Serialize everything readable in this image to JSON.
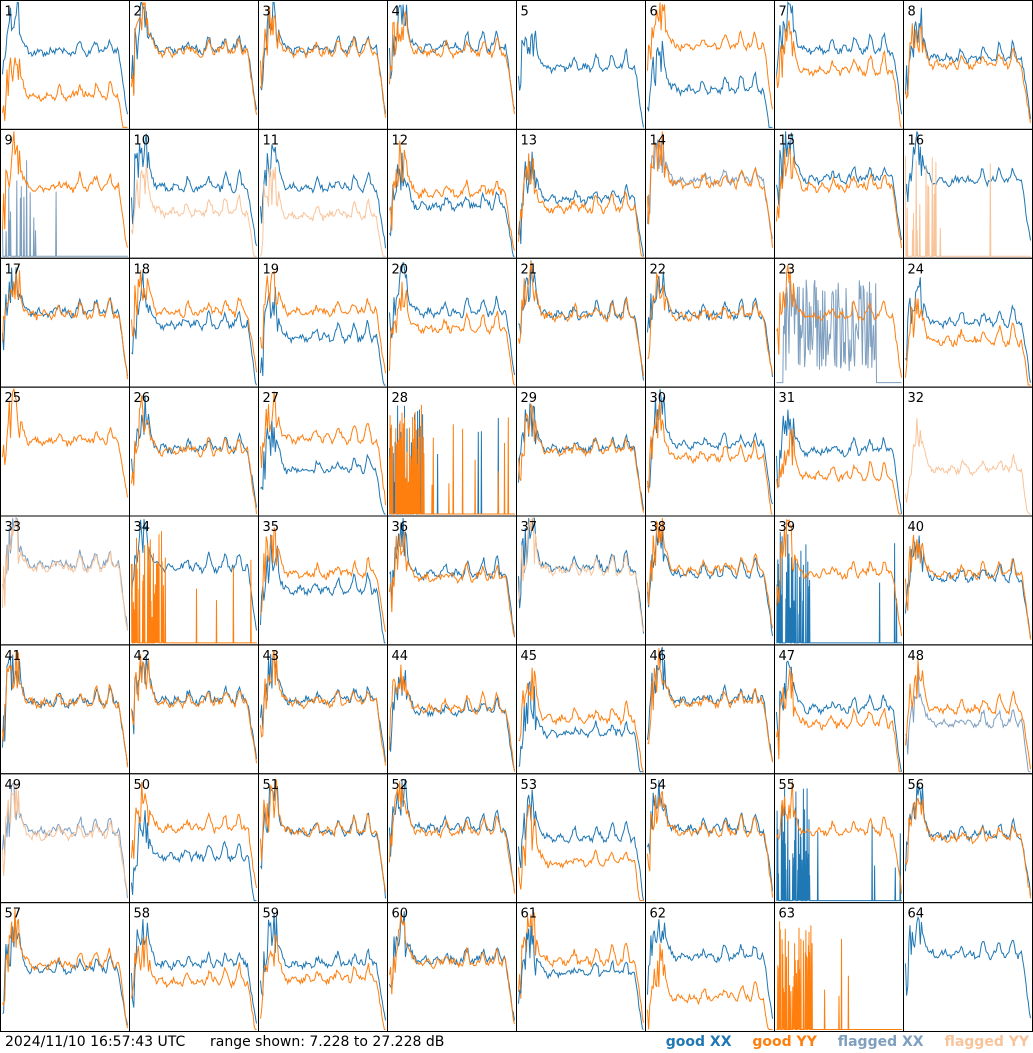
{
  "figure": {
    "timestamp": "2024/11/10 16:57:43 UTC",
    "range_label": "range shown: 7.228 to 27.228 dB"
  },
  "legend": {
    "good_xx": "good XX",
    "good_yy": "good YY",
    "flagged_xx": "flagged XX",
    "flagged_yy": "flagged YY"
  },
  "colors": {
    "good_xx": "#1f77b4",
    "good_yy": "#ff7f0e",
    "flagged_xx": "#7f9fbf",
    "flagged_yy": "#f9c49a",
    "border": "#000000"
  },
  "chart_data": {
    "type": "line",
    "layout": "8x8 small multiples",
    "ylim_db": [
      7.228,
      27.228
    ],
    "tiles": [
      {
        "id": "1",
        "xx": "good",
        "yy": "good",
        "xx_level": 0.6,
        "yy_level": 0.25,
        "yy_first": true
      },
      {
        "id": "2",
        "xx": "good",
        "yy": "good",
        "xx_level": 0.62,
        "yy_level": 0.6
      },
      {
        "id": "3",
        "xx": "good",
        "yy": "good",
        "xx_level": 0.62,
        "yy_level": 0.6
      },
      {
        "id": "4",
        "xx": "good",
        "yy": "good",
        "xx_level": 0.64,
        "yy_level": 0.6
      },
      {
        "id": "5",
        "xx": "good",
        "yy": "none",
        "xx_level": 0.48
      },
      {
        "id": "6",
        "xx": "good",
        "yy": "good",
        "xx_level": 0.3,
        "yy_level": 0.65
      },
      {
        "id": "7",
        "xx": "good",
        "yy": "good",
        "xx_level": 0.62,
        "yy_level": 0.45
      },
      {
        "id": "8",
        "xx": "good",
        "yy": "good",
        "xx_level": 0.55,
        "yy_level": 0.5
      },
      {
        "id": "9",
        "xx": "flagged_spikes",
        "yy": "good",
        "yy_level": 0.55
      },
      {
        "id": "10",
        "xx": "good",
        "yy": "flagged",
        "xx_level": 0.55,
        "yy_level": 0.35
      },
      {
        "id": "11",
        "xx": "good",
        "yy": "flagged",
        "xx_level": 0.55,
        "yy_level": 0.32
      },
      {
        "id": "12",
        "xx": "good",
        "yy": "good",
        "xx_level": 0.4,
        "yy_level": 0.5
      },
      {
        "id": "13",
        "xx": "good",
        "yy": "good",
        "xx_level": 0.45,
        "yy_level": 0.38
      },
      {
        "id": "14",
        "xx": "flagged",
        "yy": "good",
        "xx_level": 0.6,
        "yy_level": 0.58
      },
      {
        "id": "15",
        "xx": "good",
        "yy": "good",
        "xx_level": 0.62,
        "yy_level": 0.55
      },
      {
        "id": "16",
        "xx": "good",
        "yy": "flagged_spikes",
        "xx_level": 0.6
      },
      {
        "id": "17",
        "xx": "good",
        "yy": "good",
        "xx_level": 0.58,
        "yy_level": 0.56
      },
      {
        "id": "18",
        "xx": "good",
        "yy": "good",
        "xx_level": 0.48,
        "yy_level": 0.58
      },
      {
        "id": "19",
        "xx": "good",
        "yy": "good",
        "xx_level": 0.38,
        "yy_level": 0.58
      },
      {
        "id": "20",
        "xx": "good",
        "yy": "good",
        "xx_level": 0.58,
        "yy_level": 0.45
      },
      {
        "id": "21",
        "xx": "good",
        "yy": "good",
        "xx_level": 0.56,
        "yy_level": 0.55
      },
      {
        "id": "22",
        "xx": "good",
        "yy": "good",
        "xx_level": 0.56,
        "yy_level": 0.55
      },
      {
        "id": "23",
        "xx": "flagged_noise",
        "yy": "good",
        "yy_level": 0.55
      },
      {
        "id": "24",
        "xx": "good",
        "yy": "good",
        "xx_level": 0.5,
        "yy_level": 0.35
      },
      {
        "id": "25",
        "xx": "none",
        "yy": "good",
        "yy_level": 0.58
      },
      {
        "id": "26",
        "xx": "good",
        "yy": "good",
        "xx_level": 0.52,
        "yy_level": 0.5
      },
      {
        "id": "27",
        "xx": "good",
        "yy": "good",
        "xx_level": 0.35,
        "yy_level": 0.6,
        "yy_first": true
      },
      {
        "id": "28",
        "xx": "good_spikes",
        "yy": "good_spikes"
      },
      {
        "id": "29",
        "xx": "good",
        "yy": "good",
        "xx_level": 0.52,
        "yy_level": 0.5
      },
      {
        "id": "30",
        "xx": "good",
        "yy": "good",
        "xx_level": 0.55,
        "yy_level": 0.45
      },
      {
        "id": "31",
        "xx": "good",
        "yy": "good",
        "xx_level": 0.5,
        "yy_level": 0.3
      },
      {
        "id": "32",
        "xx": "none",
        "yy": "flagged",
        "yy_level": 0.35
      },
      {
        "id": "33",
        "xx": "flagged",
        "yy": "flagged",
        "xx_level": 0.62,
        "yy_level": 0.6
      },
      {
        "id": "34",
        "xx": "good",
        "yy": "good_spikes",
        "xx_level": 0.6
      },
      {
        "id": "35",
        "xx": "good",
        "yy": "good",
        "xx_level": 0.42,
        "yy_level": 0.55
      },
      {
        "id": "36",
        "xx": "good",
        "yy": "good",
        "xx_level": 0.55,
        "yy_level": 0.52
      },
      {
        "id": "37",
        "xx": "good",
        "yy": "flagged",
        "xx_level": 0.6,
        "yy_level": 0.58
      },
      {
        "id": "38",
        "xx": "good",
        "yy": "good",
        "xx_level": 0.55,
        "yy_level": 0.58
      },
      {
        "id": "39",
        "xx": "good_spikes",
        "yy": "good",
        "yy_level": 0.55
      },
      {
        "id": "40",
        "xx": "good",
        "yy": "good",
        "xx_level": 0.52,
        "yy_level": 0.55
      },
      {
        "id": "41",
        "xx": "good",
        "yy": "good",
        "xx_level": 0.55,
        "yy_level": 0.55
      },
      {
        "id": "42",
        "xx": "good",
        "yy": "good",
        "xx_level": 0.57,
        "yy_level": 0.55
      },
      {
        "id": "43",
        "xx": "good",
        "yy": "good",
        "xx_level": 0.57,
        "yy_level": 0.55
      },
      {
        "id": "44",
        "xx": "good",
        "yy": "good",
        "xx_level": 0.48,
        "yy_level": 0.5
      },
      {
        "id": "45",
        "xx": "good",
        "yy": "good",
        "xx_level": 0.3,
        "yy_level": 0.42
      },
      {
        "id": "46",
        "xx": "good",
        "yy": "good",
        "xx_level": 0.57,
        "yy_level": 0.55
      },
      {
        "id": "47",
        "xx": "good",
        "yy": "good",
        "xx_level": 0.5,
        "yy_level": 0.38
      },
      {
        "id": "48",
        "xx": "flagged",
        "yy": "good",
        "xx_level": 0.38,
        "yy_level": 0.5
      },
      {
        "id": "49",
        "xx": "flagged",
        "yy": "flagged",
        "xx_level": 0.55,
        "yy_level": 0.52
      },
      {
        "id": "50",
        "xx": "good",
        "yy": "good",
        "xx_level": 0.35,
        "yy_level": 0.58
      },
      {
        "id": "51",
        "xx": "good",
        "yy": "good",
        "xx_level": 0.55,
        "yy_level": 0.55
      },
      {
        "id": "52",
        "xx": "good",
        "yy": "good",
        "xx_level": 0.58,
        "yy_level": 0.55
      },
      {
        "id": "53",
        "xx": "good",
        "yy": "good",
        "xx_level": 0.5,
        "yy_level": 0.3
      },
      {
        "id": "54",
        "xx": "good",
        "yy": "good",
        "xx_level": 0.57,
        "yy_level": 0.55
      },
      {
        "id": "55",
        "xx": "good_spikes",
        "yy": "good",
        "yy_level": 0.55
      },
      {
        "id": "56",
        "xx": "good",
        "yy": "good",
        "xx_level": 0.52,
        "yy_level": 0.5
      },
      {
        "id": "57",
        "xx": "good",
        "yy": "good",
        "xx_level": 0.48,
        "yy_level": 0.52
      },
      {
        "id": "58",
        "xx": "good",
        "yy": "good",
        "xx_level": 0.52,
        "yy_level": 0.38
      },
      {
        "id": "59",
        "xx": "good",
        "yy": "good",
        "xx_level": 0.52,
        "yy_level": 0.4
      },
      {
        "id": "60",
        "xx": "good",
        "yy": "good",
        "xx_level": 0.55,
        "yy_level": 0.53
      },
      {
        "id": "61",
        "xx": "good",
        "yy": "good",
        "xx_level": 0.45,
        "yy_level": 0.55,
        "yy_first": true
      },
      {
        "id": "62",
        "xx": "good",
        "yy": "good",
        "xx_level": 0.58,
        "yy_level": 0.25
      },
      {
        "id": "63",
        "xx": "none",
        "yy": "good_spikes"
      },
      {
        "id": "64",
        "xx": "good",
        "yy": "none",
        "xx_level": 0.6
      }
    ]
  }
}
